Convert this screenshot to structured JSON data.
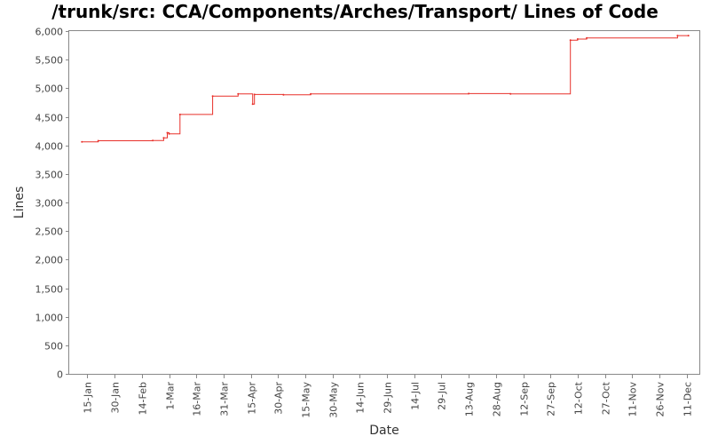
{
  "chart_data": {
    "type": "line",
    "title": "/trunk/src: CCA/Components/Arches/Transport/ Lines of Code",
    "xlabel": "Date",
    "ylabel": "Lines",
    "ylim": [
      0,
      6000
    ],
    "y_ticks": [
      0,
      500,
      1000,
      1500,
      2000,
      2500,
      3000,
      3500,
      4000,
      4500,
      5000,
      5500,
      6000
    ],
    "y_tick_labels": [
      "0",
      "500",
      "1,000",
      "1,500",
      "2,000",
      "2,500",
      "3,000",
      "3,500",
      "4,000",
      "4,500",
      "5,000",
      "5,500",
      "6,000"
    ],
    "xlim": [
      "Jan 5",
      "Dec 18"
    ],
    "x_ticks": [
      "Jan 15",
      "Jan 30",
      "Feb 14",
      "Mar 1",
      "Mar 16",
      "Mar 31",
      "Apr 15",
      "Apr 30",
      "May 15",
      "May 30",
      "Jun 14",
      "Jun 29",
      "Jul 14",
      "Jul 29",
      "Aug 13",
      "Aug 28",
      "Sep 12",
      "Sep 27",
      "Oct 12",
      "Oct 27",
      "Nov 11",
      "Nov 26",
      "Dec 11"
    ],
    "x_tick_labels": [
      "15-Jan",
      "30-Jan",
      "14-Feb",
      "1-Mar",
      "16-Mar",
      "31-Mar",
      "15-Apr",
      "30-Apr",
      "15-May",
      "30-May",
      "14-Jun",
      "29-Jun",
      "14-Jul",
      "29-Jul",
      "13-Aug",
      "28-Aug",
      "12-Sep",
      "27-Sep",
      "12-Oct",
      "27-Oct",
      "11-Nov",
      "26-Nov",
      "11-Dec"
    ],
    "grid": false,
    "series": [
      {
        "color": "#e8302a",
        "step": true,
        "points": [
          {
            "x": "Jan 12",
            "y": 4060
          },
          {
            "x": "Jan 21",
            "y": 4080
          },
          {
            "x": "Feb 20",
            "y": 4085
          },
          {
            "x": "Feb 26",
            "y": 4130
          },
          {
            "x": "Feb 28",
            "y": 4220
          },
          {
            "x": "Mar 1",
            "y": 4200
          },
          {
            "x": "Mar 7",
            "y": 4540
          },
          {
            "x": "Mar 25",
            "y": 4860
          },
          {
            "x": "Apr 8",
            "y": 4900
          },
          {
            "x": "Apr 16",
            "y": 4720
          },
          {
            "x": "Apr 17",
            "y": 4890
          },
          {
            "x": "May 3",
            "y": 4885
          },
          {
            "x": "May 18",
            "y": 4900
          },
          {
            "x": "Aug 13",
            "y": 4905
          },
          {
            "x": "Sep 5",
            "y": 4900
          },
          {
            "x": "Oct 8",
            "y": 5840
          },
          {
            "x": "Oct 12",
            "y": 5860
          },
          {
            "x": "Oct 17",
            "y": 5880
          },
          {
            "x": "Dec 6",
            "y": 5920
          },
          {
            "x": "Dec 12",
            "y": 5920
          }
        ]
      }
    ]
  }
}
